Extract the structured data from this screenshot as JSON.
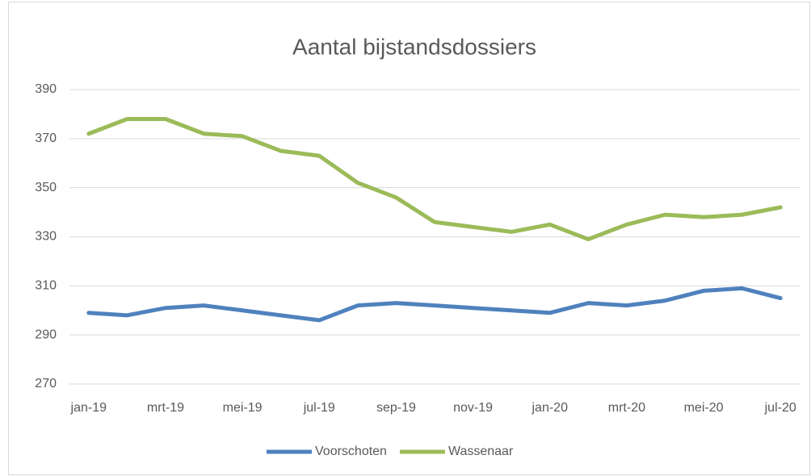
{
  "chart_data": {
    "type": "line",
    "title": "Aantal bijstandsdossiers",
    "categories": [
      "jan-19",
      null,
      "mrt-19",
      null,
      "mei-19",
      null,
      "jul-19",
      null,
      "sep-19",
      null,
      "nov-19",
      null,
      "jan-20",
      null,
      "mrt-20",
      null,
      "mei-20",
      null,
      "jul-20"
    ],
    "series": [
      {
        "name": "Voorschoten",
        "color": "#4f81bd",
        "values": [
          299,
          298,
          301,
          302,
          300,
          298,
          296,
          302,
          303,
          302,
          301,
          300,
          299,
          303,
          302,
          304,
          308,
          309,
          305
        ]
      },
      {
        "name": "Wassenaar",
        "color": "#9bbb59",
        "values": [
          372,
          378,
          378,
          372,
          371,
          365,
          363,
          352,
          346,
          336,
          334,
          332,
          335,
          329,
          335,
          339,
          338,
          339,
          342
        ]
      }
    ],
    "ylim": [
      270,
      390
    ],
    "yticks": [
      270,
      290,
      310,
      330,
      350,
      370,
      390
    ],
    "grid": true,
    "legend": "bottom"
  }
}
